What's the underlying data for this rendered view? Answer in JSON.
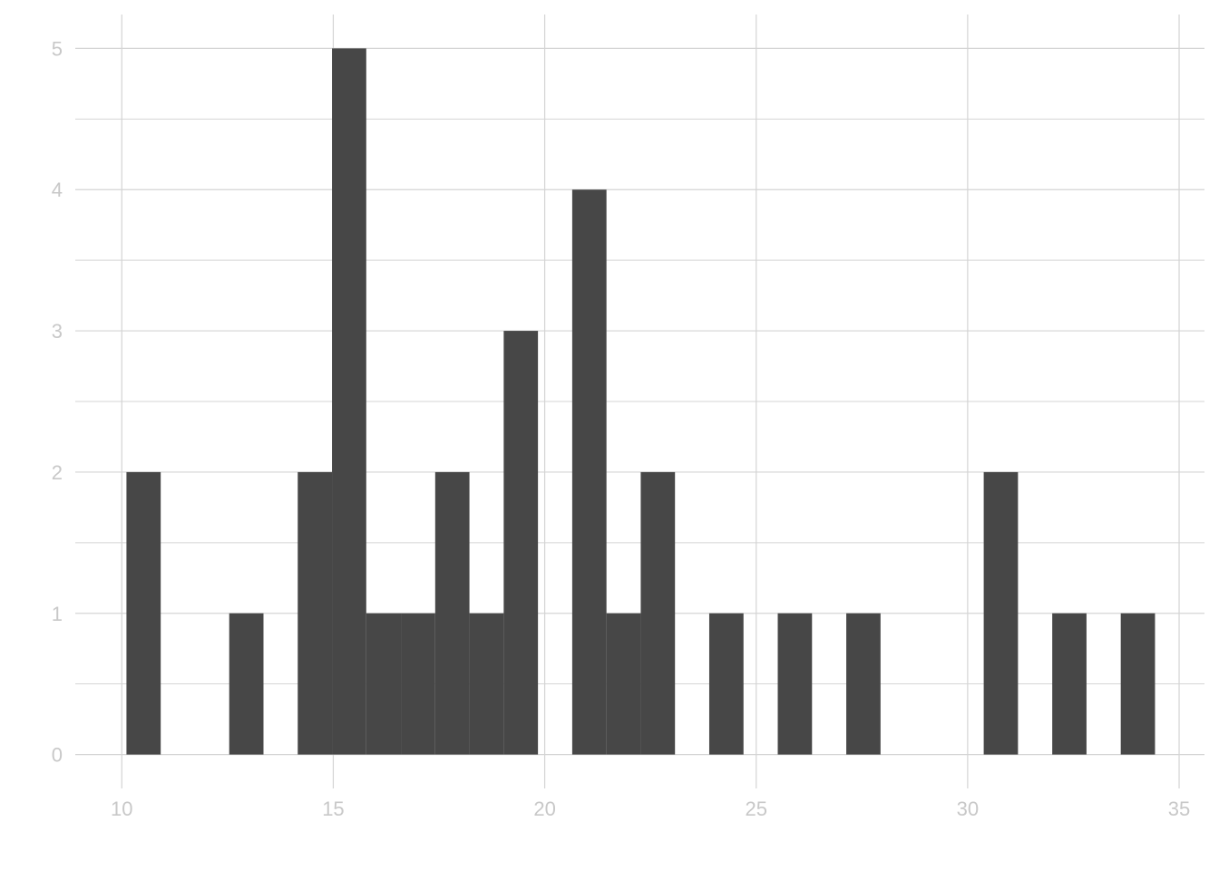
{
  "chart_data": {
    "type": "bar",
    "title": "",
    "xlabel": "",
    "ylabel": "",
    "grid": true,
    "bar_color": "#474747",
    "grid_color": "#d4d4d4",
    "tick_label_color": "#c8c8c8",
    "xlim": [
      8.9,
      35.6
    ],
    "ylim": [
      -0.24,
      5.24
    ],
    "xticks": [
      "10",
      "15",
      "20",
      "25",
      "30",
      "35"
    ],
    "xtick_values": [
      10,
      15,
      20,
      25,
      30,
      35
    ],
    "yticks": [
      "0",
      "1",
      "2",
      "3",
      "4",
      "5"
    ],
    "ytick_values": [
      0,
      1,
      2,
      3,
      4,
      5
    ],
    "bins": [
      {
        "x0": 10.11,
        "x1": 10.92,
        "count": 2
      },
      {
        "x0": 12.54,
        "x1": 13.35,
        "count": 1
      },
      {
        "x0": 14.16,
        "x1": 14.97,
        "count": 2
      },
      {
        "x0": 14.97,
        "x1": 15.78,
        "count": 5
      },
      {
        "x0": 15.78,
        "x1": 16.6,
        "count": 1
      },
      {
        "x0": 16.6,
        "x1": 17.41,
        "count": 1
      },
      {
        "x0": 17.41,
        "x1": 18.22,
        "count": 2
      },
      {
        "x0": 18.22,
        "x1": 19.03,
        "count": 1
      },
      {
        "x0": 19.03,
        "x1": 19.84,
        "count": 3
      },
      {
        "x0": 20.65,
        "x1": 21.46,
        "count": 4
      },
      {
        "x0": 21.46,
        "x1": 22.27,
        "count": 1
      },
      {
        "x0": 22.27,
        "x1": 23.08,
        "count": 2
      },
      {
        "x0": 23.89,
        "x1": 24.7,
        "count": 1
      },
      {
        "x0": 25.51,
        "x1": 26.32,
        "count": 1
      },
      {
        "x0": 27.13,
        "x1": 27.94,
        "count": 1
      },
      {
        "x0": 30.38,
        "x1": 31.19,
        "count": 2
      },
      {
        "x0": 32.0,
        "x1": 32.81,
        "count": 1
      },
      {
        "x0": 33.62,
        "x1": 34.43,
        "count": 1
      }
    ]
  }
}
